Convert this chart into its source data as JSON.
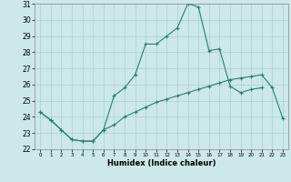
{
  "xlabel": "Humidex (Indice chaleur)",
  "x": [
    0,
    1,
    2,
    3,
    4,
    5,
    6,
    7,
    8,
    9,
    10,
    11,
    12,
    13,
    14,
    15,
    16,
    17,
    18,
    19,
    20,
    21,
    22,
    23
  ],
  "line1": [
    24.3,
    23.8,
    23.2,
    22.6,
    22.5,
    22.5,
    23.2,
    25.3,
    25.8,
    26.6,
    28.5,
    28.5,
    29.0,
    29.5,
    31.0,
    30.8,
    28.1,
    28.2,
    25.9,
    25.5,
    25.7,
    25.8,
    null,
    null
  ],
  "line2": [
    24.3,
    23.8,
    23.2,
    22.6,
    22.5,
    22.5,
    23.2,
    23.5,
    24.0,
    24.3,
    24.6,
    24.9,
    25.1,
    25.3,
    25.5,
    25.7,
    25.9,
    26.1,
    26.3,
    26.4,
    26.5,
    26.6,
    25.8,
    23.9
  ],
  "ylim": [
    22,
    31
  ],
  "xlim_min": -0.5,
  "xlim_max": 23.5,
  "yticks": [
    22,
    23,
    24,
    25,
    26,
    27,
    28,
    29,
    30,
    31
  ],
  "xticks": [
    0,
    1,
    2,
    3,
    4,
    5,
    6,
    7,
    8,
    9,
    10,
    11,
    12,
    13,
    14,
    15,
    16,
    17,
    18,
    19,
    20,
    21,
    22,
    23
  ],
  "line_color": "#2d7d6e",
  "bg_color": "#cce8e8",
  "grid_color": "#a8d0d0"
}
